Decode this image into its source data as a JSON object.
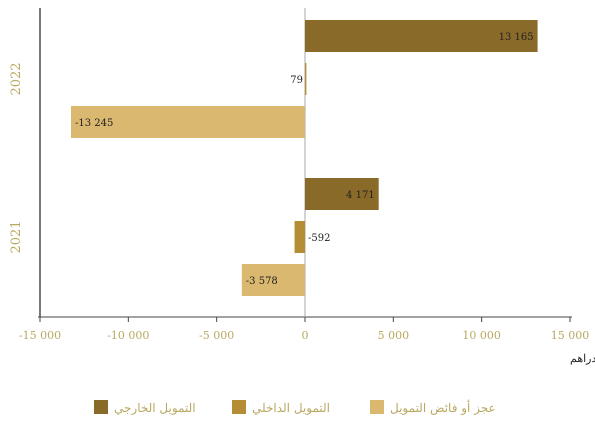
{
  "chart_data": {
    "type": "bar",
    "orientation": "horizontal",
    "categories": [
      "2022",
      "2021"
    ],
    "series": [
      {
        "name": "التمويل الخارجي",
        "color": "#8a6a28",
        "values": [
          13165,
          4171
        ]
      },
      {
        "name": "التمويل الداخلي",
        "color": "#b48d35",
        "values": [
          79,
          -592
        ]
      },
      {
        "name": "عجز أو فائض التمويل",
        "color": "#dbb870",
        "values": [
          -13245,
          -3578
        ]
      }
    ],
    "data_labels": {
      "2022": [
        "13 165",
        "79",
        "-13 245"
      ],
      "2021": [
        "4 171",
        "-592",
        "-3 578"
      ]
    },
    "xlim": [
      -15000,
      15000
    ],
    "xticks": [
      -15000,
      -10000,
      -5000,
      0,
      5000,
      10000,
      15000
    ],
    "xtick_labels": [
      "-15 000",
      "-10 000",
      "-5 000",
      "0",
      "5 000",
      "10 000",
      "15 000"
    ],
    "xlabel": "بملايين الدراهم",
    "legend": {
      "position": "bottom",
      "order": [
        "عجز أو فائض التمويل",
        "التمويل الداخلي",
        "التمويل الخارجي"
      ]
    },
    "grid": false
  }
}
